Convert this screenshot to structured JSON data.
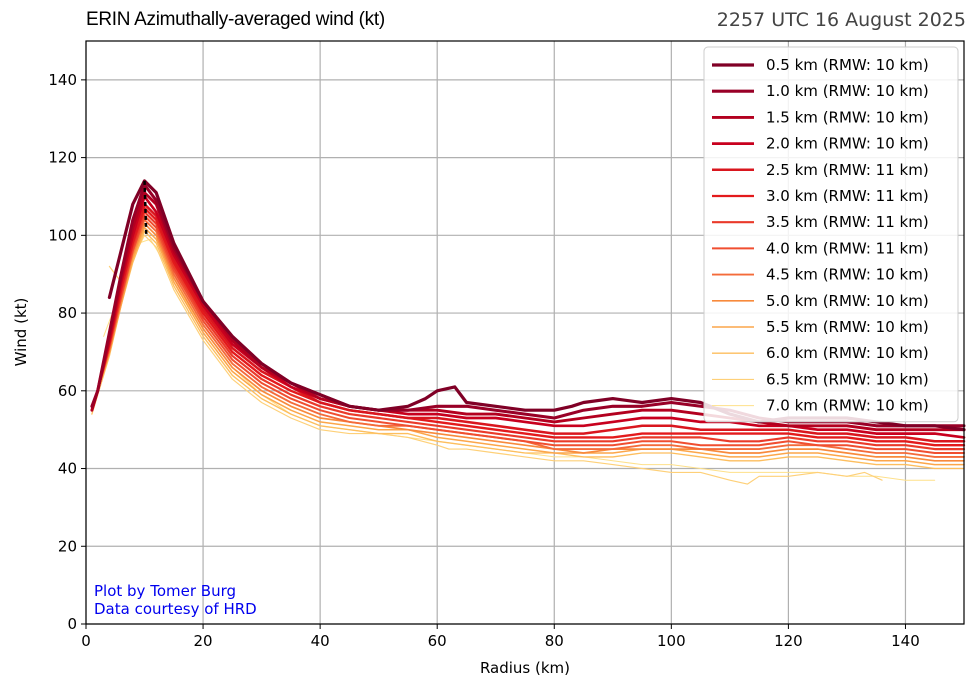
{
  "chart_data": {
    "type": "line",
    "title": "ERIN Azimuthally-averaged wind (kt)",
    "subtitle": "2257 UTC 16 August 2025",
    "xlabel": "Radius (km)",
    "ylabel": "Wind (kt)",
    "xlim": [
      0,
      150
    ],
    "ylim": [
      0,
      150
    ],
    "xticks": [
      0,
      20,
      40,
      60,
      80,
      100,
      120,
      140
    ],
    "yticks": [
      0,
      20,
      40,
      60,
      80,
      100,
      120,
      140
    ],
    "grid": true,
    "legend_position": "top-right",
    "annotations": [
      "Plot by Tomer Burg",
      "Data courtesy of HRD"
    ],
    "annotation_color": "#0000ee",
    "rmw_marker": {
      "style": "dashed",
      "color": "#000000"
    },
    "series": [
      {
        "name": "0.5 km (RMW: 10 km)",
        "color": "#800026",
        "x": [
          4,
          6,
          8,
          10,
          12,
          15,
          20,
          25,
          30,
          35,
          40,
          45,
          50,
          55,
          58,
          60,
          63,
          65,
          70,
          75,
          80,
          83,
          85,
          90,
          95,
          100,
          105,
          110,
          115,
          120,
          125,
          130,
          135,
          140,
          145,
          150
        ],
        "y": [
          84,
          96,
          108,
          114,
          111,
          98,
          83,
          74,
          67,
          62,
          59,
          56,
          55,
          56,
          58,
          60,
          61,
          57,
          56,
          55,
          55,
          56,
          57,
          58,
          57,
          58,
          57,
          54,
          52,
          53,
          53,
          53,
          52,
          51,
          51,
          50
        ]
      },
      {
        "name": "1.0 km (RMW: 10 km)",
        "color": "#990027",
        "x": [
          1,
          2,
          4,
          6,
          8,
          10,
          12,
          15,
          20,
          25,
          30,
          35,
          40,
          45,
          50,
          55,
          60,
          65,
          70,
          75,
          80,
          85,
          90,
          95,
          100,
          105,
          110,
          115,
          120,
          125,
          130,
          135,
          140,
          145,
          150
        ],
        "y": [
          56,
          60,
          75,
          90,
          104,
          113,
          109,
          97,
          83,
          74,
          67,
          62,
          59,
          56,
          55,
          55,
          56,
          56,
          55,
          54,
          53,
          55,
          56,
          56,
          57,
          56,
          55,
          53,
          52,
          52,
          52,
          51,
          51,
          51,
          51
        ]
      },
      {
        "name": "1.5 km (RMW: 10 km)",
        "color": "#b3001f",
        "x": [
          1,
          2,
          4,
          6,
          8,
          10,
          12,
          15,
          20,
          25,
          30,
          35,
          40,
          45,
          50,
          55,
          60,
          65,
          70,
          75,
          80,
          85,
          90,
          95,
          100,
          105,
          110,
          115,
          120,
          125,
          130,
          135,
          140,
          145,
          150
        ],
        "y": [
          55,
          60,
          74,
          89,
          102,
          111,
          108,
          96,
          83,
          73,
          66,
          62,
          58,
          56,
          55,
          55,
          55,
          54,
          54,
          53,
          52,
          53,
          54,
          55,
          55,
          54,
          53,
          52,
          51,
          51,
          51,
          50,
          50,
          50,
          50
        ]
      },
      {
        "name": "2.0 km (RMW: 10 km)",
        "color": "#c8001e",
        "x": [
          1,
          2,
          4,
          6,
          8,
          10,
          12,
          15,
          20,
          25,
          30,
          35,
          40,
          45,
          50,
          55,
          60,
          65,
          70,
          75,
          80,
          85,
          90,
          95,
          100,
          105,
          110,
          115,
          120,
          125,
          130,
          135,
          140,
          145,
          150
        ],
        "y": [
          55,
          60,
          73,
          88,
          100,
          110,
          106,
          95,
          82,
          72,
          66,
          61,
          58,
          56,
          55,
          54,
          54,
          53,
          53,
          52,
          51,
          51,
          52,
          53,
          53,
          52,
          52,
          51,
          51,
          50,
          50,
          49,
          49,
          49,
          48
        ]
      },
      {
        "name": "2.5 km (RMW: 11 km)",
        "color": "#d9161e",
        "x": [
          1,
          2,
          4,
          6,
          8,
          10,
          12,
          15,
          20,
          25,
          30,
          35,
          40,
          45,
          50,
          55,
          60,
          65,
          70,
          75,
          80,
          85,
          90,
          95,
          100,
          105,
          110,
          115,
          120,
          125,
          130,
          135,
          140,
          145,
          150
        ],
        "y": [
          55,
          60,
          73,
          87,
          99,
          108,
          105,
          94,
          81,
          71,
          65,
          61,
          57,
          55,
          54,
          53,
          53,
          52,
          51,
          50,
          49,
          49,
          50,
          51,
          51,
          50,
          50,
          50,
          50,
          49,
          49,
          48,
          48,
          47,
          47
        ]
      },
      {
        "name": "3.0 km (RMW: 11 km)",
        "color": "#e31a1c",
        "x": [
          1,
          2,
          4,
          6,
          8,
          10,
          12,
          15,
          20,
          25,
          30,
          35,
          40,
          45,
          50,
          55,
          60,
          65,
          70,
          75,
          80,
          85,
          90,
          95,
          100,
          105,
          110,
          115,
          120,
          125,
          130,
          135,
          140,
          145,
          150
        ],
        "y": [
          55,
          60,
          72,
          86,
          98,
          107,
          104,
          93,
          80,
          70,
          64,
          60,
          57,
          55,
          54,
          53,
          52,
          51,
          50,
          49,
          48,
          48,
          48,
          49,
          49,
          49,
          49,
          49,
          49,
          48,
          48,
          47,
          47,
          46,
          46
        ]
      },
      {
        "name": "3.5 km (RMW: 11 km)",
        "color": "#ea3a2a",
        "x": [
          1,
          2,
          4,
          6,
          8,
          10,
          12,
          15,
          20,
          25,
          30,
          35,
          40,
          45,
          50,
          55,
          60,
          65,
          70,
          75,
          80,
          85,
          90,
          95,
          100,
          105,
          110,
          115,
          120,
          125,
          130,
          135,
          140,
          145,
          150
        ],
        "y": [
          55,
          60,
          72,
          85,
          97,
          106,
          103,
          92,
          79,
          69,
          63,
          59,
          56,
          54,
          53,
          52,
          51,
          50,
          49,
          48,
          47,
          47,
          47,
          48,
          48,
          48,
          47,
          47,
          48,
          47,
          47,
          46,
          46,
          45,
          45
        ]
      },
      {
        "name": "4.0 km (RMW: 11 km)",
        "color": "#f04e30",
        "x": [
          1,
          2,
          4,
          6,
          8,
          10,
          12,
          15,
          20,
          25,
          30,
          35,
          40,
          45,
          50,
          55,
          60,
          65,
          70,
          75,
          80,
          85,
          90,
          95,
          100,
          105,
          110,
          115,
          120,
          125,
          130,
          135,
          140,
          145,
          150
        ],
        "y": [
          55,
          60,
          71,
          84,
          96,
          105,
          102,
          91,
          78,
          68,
          62,
          58,
          55,
          53,
          52,
          51,
          50,
          49,
          48,
          47,
          46,
          46,
          46,
          47,
          47,
          46,
          46,
          46,
          47,
          46,
          46,
          45,
          45,
          44,
          44
        ]
      },
      {
        "name": "4.5 km (RMW: 10 km)",
        "color": "#f46b3a",
        "x": [
          1,
          2,
          4,
          6,
          8,
          10,
          12,
          15,
          20,
          25,
          30,
          35,
          40,
          45,
          50,
          55,
          60,
          65,
          70,
          75,
          80,
          85,
          90,
          95,
          100,
          105,
          110,
          115,
          120,
          125,
          130,
          135,
          140,
          145,
          150
        ],
        "y": [
          55,
          60,
          71,
          84,
          96,
          104,
          101,
          90,
          77,
          67,
          61,
          57,
          54,
          52,
          51,
          51,
          50,
          49,
          48,
          47,
          45,
          45,
          45,
          46,
          46,
          45,
          45,
          45,
          46,
          46,
          45,
          44,
          44,
          43,
          43
        ]
      },
      {
        "name": "5.0 km (RMW: 10 km)",
        "color": "#f88a3c",
        "x": [
          1,
          2,
          4,
          6,
          8,
          10,
          12,
          15,
          20,
          25,
          30,
          35,
          40,
          45,
          50,
          55,
          60,
          65,
          70,
          75,
          80,
          85,
          90,
          95,
          100,
          105,
          110,
          115,
          120,
          125,
          130,
          135,
          140,
          145,
          150
        ],
        "y": [
          55,
          60,
          70,
          83,
          95,
          103,
          100,
          89,
          76,
          66,
          60,
          56,
          53,
          52,
          51,
          50,
          49,
          48,
          47,
          46,
          45,
          44,
          45,
          45,
          45,
          45,
          44,
          44,
          45,
          45,
          44,
          43,
          43,
          42,
          42
        ]
      },
      {
        "name": "5.5 km (RMW: 10 km)",
        "color": "#fca64a",
        "x": [
          1,
          2,
          4,
          6,
          8,
          10,
          12,
          15,
          20,
          25,
          30,
          35,
          40,
          45,
          50,
          55,
          60,
          65,
          70,
          75,
          80,
          85,
          90,
          95,
          100,
          105,
          110,
          115,
          120,
          125,
          130,
          135,
          140,
          145,
          150
        ],
        "y": [
          55,
          60,
          70,
          82,
          94,
          102,
          99,
          88,
          75,
          65,
          59,
          55,
          52,
          51,
          50,
          50,
          48,
          47,
          46,
          45,
          44,
          44,
          44,
          45,
          45,
          44,
          43,
          43,
          44,
          44,
          43,
          42,
          42,
          41,
          41
        ]
      },
      {
        "name": "6.0 km (RMW: 10 km)",
        "color": "#fdbe5e",
        "x": [
          1,
          2,
          4,
          6,
          8,
          10,
          12,
          15,
          20,
          25,
          30,
          35,
          40,
          45,
          50,
          55,
          60,
          65,
          70,
          75,
          80,
          85,
          90,
          95,
          100,
          105,
          110,
          115,
          120,
          125,
          130,
          135,
          140,
          145,
          150
        ],
        "y": [
          54,
          59,
          69,
          82,
          93,
          101,
          98,
          87,
          74,
          64,
          58,
          54,
          51,
          50,
          49,
          49,
          47,
          46,
          45,
          44,
          44,
          43,
          43,
          44,
          44,
          43,
          42,
          42,
          43,
          43,
          42,
          41,
          41,
          40,
          40
        ]
      },
      {
        "name": "6.5 km (RMW: 10 km)",
        "color": "#fed078",
        "x": [
          4,
          6,
          8,
          10,
          12,
          15,
          20,
          25,
          30,
          35,
          40,
          45,
          50,
          55,
          60,
          62,
          65,
          70,
          75,
          80,
          85,
          90,
          95,
          100,
          105,
          110,
          113,
          115,
          120,
          125,
          130,
          133,
          136
        ],
        "y": [
          92,
          88,
          94,
          100,
          97,
          86,
          73,
          63,
          57,
          53,
          50,
          49,
          49,
          48,
          46,
          45,
          45,
          44,
          43,
          42,
          42,
          41,
          40,
          39,
          39,
          37,
          36,
          38,
          38,
          39,
          38,
          39,
          37
        ]
      },
      {
        "name": "7.0 km (RMW: 10 km)",
        "color": "#fee08a",
        "x": [
          3,
          5,
          7,
          9,
          11,
          13,
          15,
          20,
          25,
          30,
          35,
          40,
          45,
          50,
          55,
          60,
          65,
          70,
          75,
          80,
          85,
          90,
          95,
          100,
          105,
          110,
          115,
          120,
          125,
          130,
          135,
          140,
          145
        ],
        "y": [
          74,
          82,
          92,
          98,
          99,
          94,
          88,
          76,
          66,
          59,
          54,
          51,
          50,
          49,
          48,
          47,
          46,
          45,
          44,
          43,
          43,
          42,
          41,
          41,
          40,
          39,
          39,
          39,
          39,
          38,
          38,
          37,
          37
        ]
      }
    ]
  }
}
